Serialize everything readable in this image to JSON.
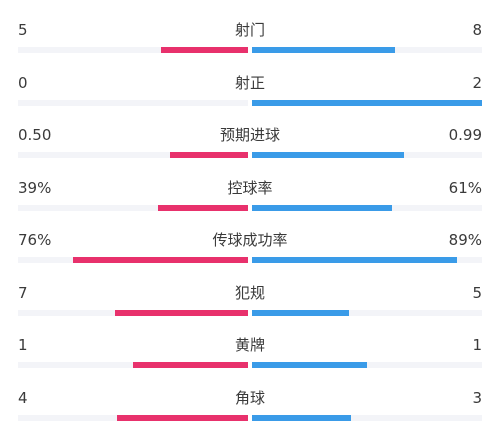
{
  "colors": {
    "home": "#e8316c",
    "away": "#3a9be8",
    "track": "#f3f4f8"
  },
  "stats": [
    {
      "label": "射门",
      "home": "5",
      "away": "8",
      "home_ratio": 0.38,
      "away_ratio": 0.62
    },
    {
      "label": "射正",
      "home": "0",
      "away": "2",
      "home_ratio": 0.0,
      "away_ratio": 1.0
    },
    {
      "label": "预期进球",
      "home": "0.50",
      "away": "0.99",
      "home_ratio": 0.34,
      "away_ratio": 0.66
    },
    {
      "label": "控球率",
      "home": "39%",
      "away": "61%",
      "home_ratio": 0.39,
      "away_ratio": 0.61
    },
    {
      "label": "传球成功率",
      "home": "76%",
      "away": "89%",
      "home_ratio": 0.76,
      "away_ratio": 0.89
    },
    {
      "label": "犯规",
      "home": "7",
      "away": "5",
      "home_ratio": 0.58,
      "away_ratio": 0.42
    },
    {
      "label": "黄牌",
      "home": "1",
      "away": "1",
      "home_ratio": 0.5,
      "away_ratio": 0.5
    },
    {
      "label": "角球",
      "home": "4",
      "away": "3",
      "home_ratio": 0.57,
      "away_ratio": 0.43
    }
  ]
}
